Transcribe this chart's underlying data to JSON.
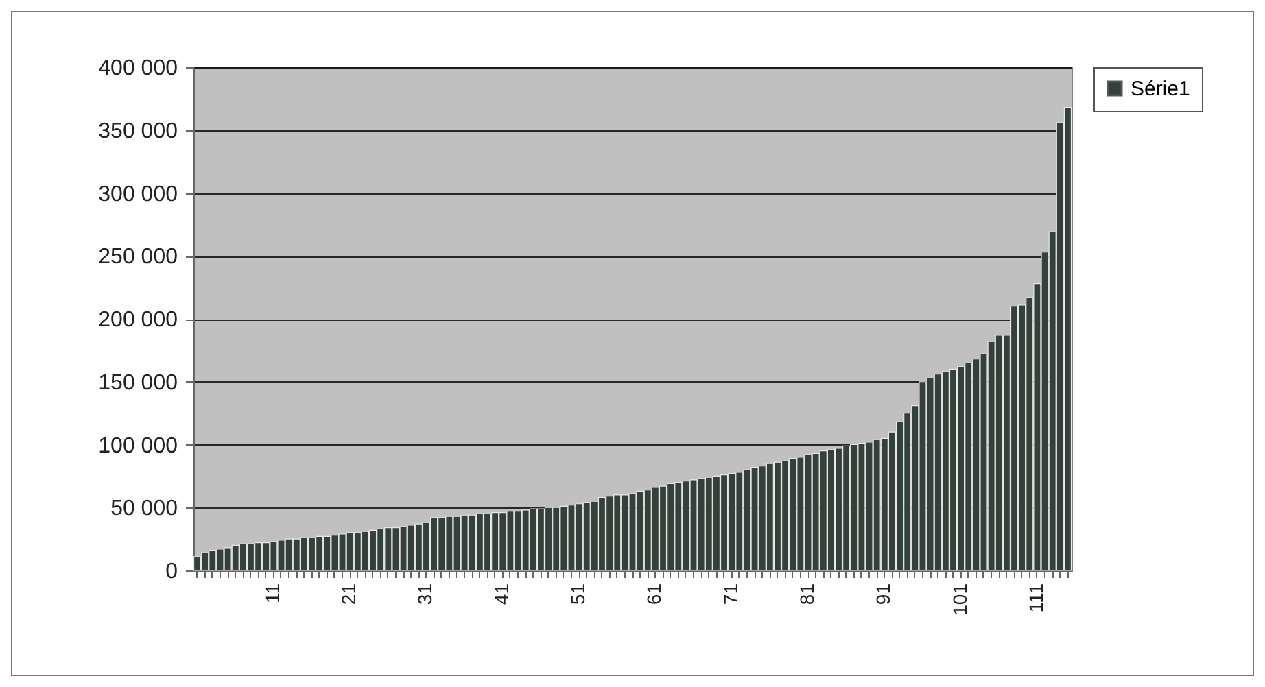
{
  "chart_data": {
    "type": "bar",
    "categories": [
      null,
      null,
      null,
      null,
      null,
      null,
      null,
      null,
      null,
      null,
      "11",
      null,
      null,
      null,
      null,
      null,
      null,
      null,
      null,
      null,
      "21",
      null,
      null,
      null,
      null,
      null,
      null,
      null,
      null,
      null,
      "31",
      null,
      null,
      null,
      null,
      null,
      null,
      null,
      null,
      null,
      "41",
      null,
      null,
      null,
      null,
      null,
      null,
      null,
      null,
      null,
      "51",
      null,
      null,
      null,
      null,
      null,
      null,
      null,
      null,
      null,
      "61",
      null,
      null,
      null,
      null,
      null,
      null,
      null,
      null,
      null,
      "71",
      null,
      null,
      null,
      null,
      null,
      null,
      null,
      null,
      null,
      "81",
      null,
      null,
      null,
      null,
      null,
      null,
      null,
      null,
      null,
      "91",
      null,
      null,
      null,
      null,
      null,
      null,
      null,
      null,
      null,
      "101",
      null,
      null,
      null,
      null,
      null,
      null,
      null,
      null,
      null,
      "111",
      null,
      null,
      null,
      null
    ],
    "series": [
      {
        "name": "Série1",
        "color": "#33413a",
        "values": [
          11000,
          14000,
          16000,
          17000,
          18000,
          20000,
          21000,
          21000,
          22000,
          22000,
          23000,
          24000,
          25000,
          25000,
          26000,
          26000,
          27000,
          27000,
          28000,
          29000,
          30000,
          30000,
          31000,
          32000,
          33000,
          34000,
          34000,
          35000,
          36000,
          37000,
          38000,
          42000,
          42000,
          43000,
          43000,
          44000,
          44000,
          45000,
          45000,
          46000,
          46000,
          47000,
          47000,
          48000,
          49000,
          49000,
          50000,
          50000,
          51000,
          52000,
          53000,
          54000,
          55000,
          58000,
          59000,
          60000,
          60000,
          61000,
          63000,
          64000,
          66000,
          67000,
          69000,
          70000,
          71000,
          72000,
          73000,
          74000,
          75000,
          76000,
          77000,
          78000,
          80000,
          82000,
          83000,
          85000,
          86000,
          87000,
          89000,
          90000,
          92000,
          93000,
          95000,
          96000,
          97000,
          99000,
          100000,
          101000,
          102000,
          104000,
          105000,
          110000,
          118000,
          125000,
          131000,
          150000,
          153000,
          156000,
          158000,
          160000,
          162000,
          165000,
          168000,
          172000,
          182000,
          187000,
          187000,
          210000,
          211000,
          217000,
          228000,
          253000,
          269000,
          356000,
          368000
        ]
      }
    ],
    "ylim": [
      0,
      400000
    ],
    "yticks": [
      {
        "value": 0,
        "label": "0"
      },
      {
        "value": 50000,
        "label": "50 000"
      },
      {
        "value": 100000,
        "label": "100 000"
      },
      {
        "value": 150000,
        "label": "150 000"
      },
      {
        "value": 200000,
        "label": "200 000"
      },
      {
        "value": 250000,
        "label": "250 000"
      },
      {
        "value": 300000,
        "label": "300 000"
      },
      {
        "value": 350000,
        "label": "350 000"
      },
      {
        "value": 400000,
        "label": "400 000"
      }
    ],
    "grid": "y",
    "legend": "right"
  }
}
